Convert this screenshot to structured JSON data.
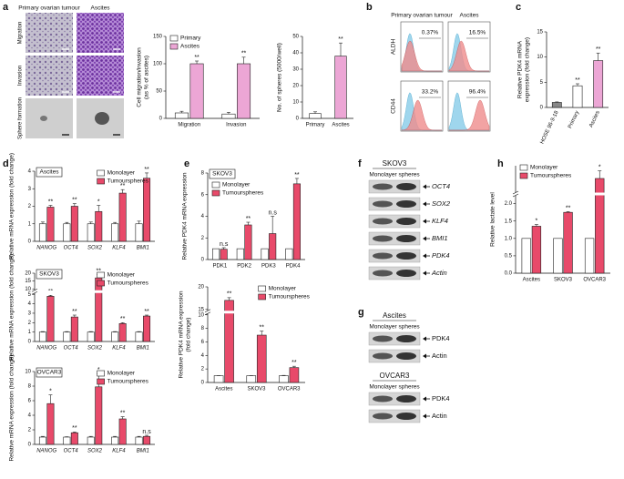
{
  "chart_data": [
    {
      "type": "image-grid",
      "panel": "a",
      "columns": [
        "Primary ovarian tumour",
        "Ascites"
      ],
      "rows": [
        "Migration",
        "Invasion",
        "Sphere formation"
      ]
    },
    {
      "type": "bar",
      "categories": [
        "Migration",
        "Invasion"
      ],
      "ylabel": [
        "Cell migration/invasion",
        "(as % of ascites)"
      ],
      "series": [
        {
          "name": "Primary",
          "color": "#ffffff",
          "values": [
            10,
            8
          ],
          "errors": [
            3,
            3
          ]
        },
        {
          "name": "Ascites",
          "color": "#eca6d5",
          "values": [
            100,
            100
          ],
          "errors": [
            5,
            12
          ],
          "sig": [
            "**",
            "**"
          ]
        }
      ],
      "ylim": [
        0,
        150
      ],
      "yticks": [
        0,
        50,
        100,
        150
      ],
      "legend": "top-left"
    },
    {
      "type": "bar",
      "categories": [
        "Primary",
        "Ascites"
      ],
      "ylabel": [
        "No. of spheres (5000/well)"
      ],
      "values": [
        3,
        38
      ],
      "errors": [
        1,
        8
      ],
      "colors": [
        "#ffffff",
        "#eca6d5"
      ],
      "sig": [
        null,
        "**"
      ],
      "ylim": [
        0,
        50
      ],
      "yticks": [
        0,
        10,
        20,
        30,
        40,
        50
      ]
    },
    {
      "type": "flow",
      "panel": "b",
      "columns": [
        "Primary ovarian tumour",
        "Ascites"
      ],
      "rows": [
        "ALDH",
        "CD44"
      ],
      "values": [
        0.37,
        16.5,
        33.2,
        96.4
      ],
      "value_labels": [
        "0.37%",
        "16.5%",
        "33.2%",
        "96.4%"
      ]
    },
    {
      "type": "bar",
      "panel": "c",
      "categories": [
        "HOSE 96-9-18",
        "Primary",
        "Ascites"
      ],
      "ylabel": [
        "Relative PDK4 mRNA",
        "expression (fold change)"
      ],
      "values": [
        1,
        4.3,
        9.3
      ],
      "errors": [
        0.1,
        0.4,
        1.5
      ],
      "colors": [
        "#888888",
        "#ffffff",
        "#eca6d5"
      ],
      "sig": [
        null,
        "**",
        "**"
      ],
      "ylim": [
        0,
        15
      ],
      "yticks": [
        0,
        5,
        10,
        15
      ],
      "rotate_categories": true
    },
    {
      "type": "bar",
      "panel": "d",
      "title": "Ascites",
      "categories": [
        "NANOG",
        "OCT4",
        "SOX2",
        "KLF4",
        "BMI1"
      ],
      "italic_categories": true,
      "ylabel": [
        "Relative mRNA expression (fold change)"
      ],
      "series": [
        {
          "name": "Monolayer",
          "color": "#ffffff",
          "values": [
            1,
            1,
            1,
            1,
            1
          ],
          "errors": [
            0.1,
            0.08,
            0.1,
            0.08,
            0.15
          ]
        },
        {
          "name": "Tumourspheres",
          "color": "#e84a6a",
          "values": [
            1.95,
            2.0,
            1.7,
            2.75,
            3.6
          ],
          "errors": [
            0.1,
            0.15,
            0.35,
            0.2,
            0.3
          ],
          "sig": [
            "**",
            "**",
            "*",
            "**",
            "**"
          ]
        }
      ],
      "ylim": [
        0,
        4
      ],
      "yticks": [
        0,
        1,
        2,
        3,
        4
      ],
      "legend": "top-right"
    },
    {
      "type": "bar",
      "title": "SKOV3",
      "categories": [
        "NANOG",
        "OCT4",
        "SOX2",
        "KLF4",
        "BMI1"
      ],
      "italic_categories": true,
      "ylabel": [
        "Relative mRNA expression (fold change)"
      ],
      "series": [
        {
          "name": "Monolayer",
          "color": "#ffffff",
          "values": [
            1,
            1,
            1,
            1,
            1
          ],
          "errors": [
            0.05,
            0.05,
            0.05,
            0.05,
            0.05
          ]
        },
        {
          "name": "Tumourspheres",
          "color": "#e84a6a",
          "values": [
            4.8,
            2.6,
            17,
            1.9,
            2.7
          ],
          "errors": [
            0.1,
            0.2,
            2,
            0.1,
            0.1
          ],
          "sig": [
            "**",
            "**",
            "**",
            "**",
            "**"
          ]
        }
      ],
      "ylim": [
        0,
        20
      ],
      "ybreak": [
        5,
        10
      ],
      "yticks": [
        0,
        1,
        2,
        3,
        4,
        5,
        10,
        15,
        20
      ],
      "legend": "top-right"
    },
    {
      "type": "bar",
      "title": "OVCAR3",
      "categories": [
        "NANOG",
        "OCT4",
        "SOX2",
        "KLF4",
        "BMI1"
      ],
      "italic_categories": true,
      "ylabel": [
        "Relative mRNA expression (fold change)"
      ],
      "series": [
        {
          "name": "Monolayer",
          "color": "#ffffff",
          "values": [
            1,
            1,
            1,
            1,
            1
          ],
          "errors": [
            0.1,
            0.05,
            0.1,
            0.1,
            0.1
          ]
        },
        {
          "name": "Tumourspheres",
          "color": "#e84a6a",
          "values": [
            5.6,
            1.6,
            7.9,
            3.5,
            1.1
          ],
          "errors": [
            1.2,
            0.1,
            1.8,
            0.3,
            0.15
          ],
          "sig": [
            "*",
            "**",
            "*",
            "**",
            "n.s"
          ]
        }
      ],
      "ylim": [
        0,
        10
      ],
      "yticks": [
        0,
        2,
        4,
        6,
        8,
        10
      ],
      "legend": "top-right"
    },
    {
      "type": "bar",
      "panel": "e",
      "title": "SKOV3",
      "categories": [
        "PDK1",
        "PDK2",
        "PDK3",
        "PDK4"
      ],
      "ylabel": [
        "Relative PDK4 mRNA expression"
      ],
      "series": [
        {
          "name": "Monolayer",
          "color": "#ffffff",
          "values": [
            1,
            1,
            1,
            1
          ]
        },
        {
          "name": "Tumourspheres",
          "color": "#e84a6a",
          "values": [
            0.95,
            3.2,
            2.4,
            7.0
          ],
          "errors": [
            0.15,
            0.25,
            1.6,
            0.5
          ],
          "sig": [
            "n.s",
            "**",
            "n.s",
            "**"
          ]
        }
      ],
      "ylim": [
        0,
        8
      ],
      "yticks": [
        0,
        2,
        4,
        6,
        8
      ],
      "legend": "top-left"
    },
    {
      "type": "bar",
      "categories": [
        "Ascites",
        "SKOV3",
        "OVCAR3"
      ],
      "ylabel": [
        "Relative PDK4 mRNA expression",
        "(fold change)"
      ],
      "series": [
        {
          "name": "Monolayer",
          "color": "#ffffff",
          "values": [
            1,
            1,
            1
          ],
          "errors": [
            0,
            0,
            0.05
          ]
        },
        {
          "name": "Tumourspheres",
          "color": "#e84a6a",
          "values": [
            17,
            7,
            2.2
          ],
          "errors": [
            0.6,
            0.6,
            0.2
          ],
          "sig": [
            "**",
            "**",
            "**"
          ]
        }
      ],
      "ylim": [
        0,
        20
      ],
      "ybreak": [
        10,
        15
      ],
      "yticks": [
        0,
        2,
        4,
        6,
        8,
        10,
        15,
        20
      ],
      "legend": "top-right"
    },
    {
      "type": "blot",
      "panel": "f",
      "italic_bands": true,
      "groups": [
        {
          "title": "SKOV3",
          "header": "Monolayer spheres",
          "bands": [
            "OCT4",
            "SOX2",
            "KLF4",
            "BMI1",
            "PDK4",
            "Actin"
          ]
        }
      ]
    },
    {
      "type": "blot",
      "panel": "g",
      "groups": [
        {
          "title": "Ascites",
          "header": "Monolayer spheres",
          "bands": [
            "PDK4",
            "Actin"
          ]
        },
        {
          "title": "OVCAR3",
          "header": "Monolayer spheres",
          "bands": [
            "PDK4",
            "Actin"
          ]
        }
      ]
    },
    {
      "type": "bar",
      "panel": "h",
      "categories": [
        "Ascites",
        "SKOV3",
        "OVCAR3"
      ],
      "ylabel": [
        "Relative lactate level"
      ],
      "series": [
        {
          "name": "Monolayer",
          "color": "#ffffff",
          "values": [
            1,
            1,
            1
          ]
        },
        {
          "name": "Tumourspheres",
          "color": "#e84a6a",
          "values": [
            1.35,
            1.75,
            2.8
          ],
          "errors": [
            0.05,
            0.02,
            0.12
          ],
          "sig": [
            "*",
            "**",
            "*"
          ]
        }
      ],
      "ylim": [
        0,
        3
      ],
      "ybreak": [
        2.2,
        2.6
      ],
      "yticks": [
        {
          "value": 0,
          "label": "0.0"
        },
        {
          "value": 0.5,
          "label": "0.5"
        },
        {
          "value": 1,
          "label": "1.0"
        },
        {
          "value": 1.5,
          "label": "1.5"
        },
        {
          "value": 2,
          "label": "2.0"
        }
      ],
      "legend": "top-left"
    }
  ]
}
